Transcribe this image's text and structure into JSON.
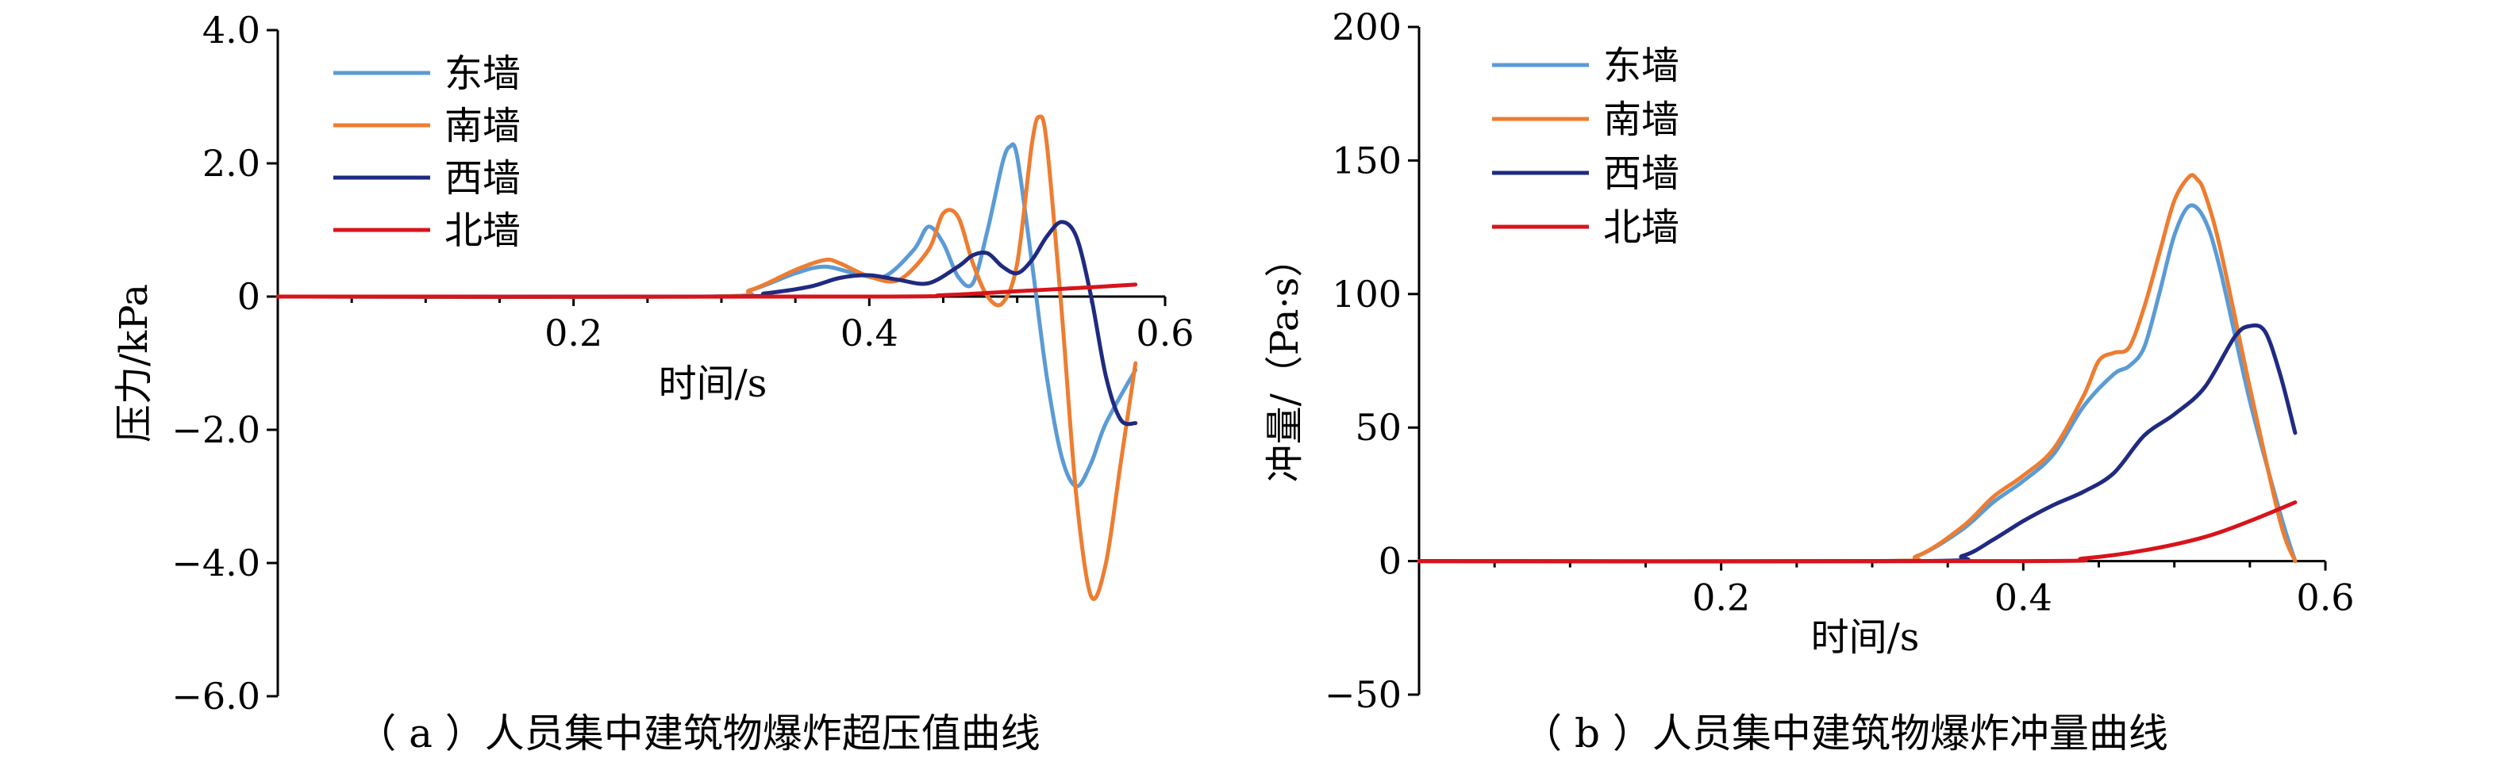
{
  "chart_data": [
    {
      "type": "line",
      "caption": "（ a ）人员集中建筑物爆炸超压值曲线",
      "xlabel": "时间/s",
      "ylabel": "压力/kPa",
      "xlim": [
        0,
        0.6
      ],
      "ylim": [
        -6.0,
        4.0
      ],
      "xticks": [
        0.2,
        0.4,
        0.6
      ],
      "xtick_labels": [
        "0.2",
        "0.4",
        "0.6"
      ],
      "yticks": [
        4.0,
        2.0,
        0,
        -2.0,
        -4.0,
        -6.0
      ],
      "ytick_labels": [
        "4.0",
        "2.0",
        "0",
        "−2.0",
        "−4.0",
        "−6.0"
      ],
      "legend_position": "top-left",
      "series": [
        {
          "name": "东墙",
          "color": "#5b9bd5",
          "x": [
            0,
            0.29,
            0.32,
            0.35,
            0.37,
            0.39,
            0.41,
            0.43,
            0.44,
            0.45,
            0.46,
            0.47,
            0.48,
            0.49,
            0.495,
            0.5,
            0.51,
            0.52,
            0.53,
            0.54,
            0.55,
            0.56,
            0.58
          ],
          "y": [
            0,
            0,
            0.1,
            0.35,
            0.45,
            0.35,
            0.3,
            0.7,
            1.05,
            0.8,
            0.3,
            0.2,
            1.0,
            2.0,
            2.25,
            2.1,
            0.5,
            -1.2,
            -2.4,
            -2.85,
            -2.5,
            -1.9,
            -1.1
          ]
        },
        {
          "name": "南墙",
          "color": "#ed7d31",
          "x": [
            0,
            0.29,
            0.32,
            0.35,
            0.37,
            0.38,
            0.4,
            0.42,
            0.44,
            0.45,
            0.46,
            0.47,
            0.48,
            0.49,
            0.5,
            0.51,
            0.515,
            0.52,
            0.53,
            0.54,
            0.55,
            0.56,
            0.57,
            0.58
          ],
          "y": [
            0,
            0,
            0.1,
            0.4,
            0.55,
            0.5,
            0.3,
            0.25,
            0.7,
            1.25,
            1.2,
            0.5,
            0.0,
            -0.1,
            0.5,
            2.3,
            2.7,
            2.3,
            -0.2,
            -3.0,
            -4.5,
            -4.0,
            -2.5,
            -1.0
          ]
        },
        {
          "name": "西墙",
          "color": "#1f2a80",
          "x": [
            0,
            0.3,
            0.33,
            0.36,
            0.38,
            0.4,
            0.42,
            0.44,
            0.46,
            0.47,
            0.48,
            0.49,
            0.5,
            0.51,
            0.52,
            0.53,
            0.54,
            0.55,
            0.56,
            0.57,
            0.58
          ],
          "y": [
            0,
            0,
            0.05,
            0.15,
            0.28,
            0.32,
            0.25,
            0.2,
            0.45,
            0.62,
            0.65,
            0.45,
            0.35,
            0.55,
            0.9,
            1.12,
            0.9,
            0.0,
            -1.2,
            -1.85,
            -1.9
          ]
        },
        {
          "name": "北墙",
          "color": "#d7141b",
          "x": [
            0,
            0.4,
            0.45,
            0.5,
            0.55,
            0.58
          ],
          "y": [
            0,
            0,
            0.02,
            0.08,
            0.14,
            0.18
          ]
        }
      ]
    },
    {
      "type": "line",
      "caption": "（ b ）人员集中建筑物爆炸冲量曲线",
      "xlabel": "时间/s",
      "ylabel": "冲量/（Pa·s）",
      "xlim": [
        0,
        0.6
      ],
      "ylim": [
        -50,
        200
      ],
      "xticks": [
        0.2,
        0.4,
        0.6
      ],
      "xtick_labels": [
        "0.2",
        "0.4",
        "0.6"
      ],
      "yticks": [
        200,
        150,
        100,
        50,
        0,
        -50
      ],
      "ytick_labels": [
        "200",
        "150",
        "100",
        "50",
        "0",
        "−50"
      ],
      "legend_position": "top-left",
      "series": [
        {
          "name": "东墙",
          "color": "#5b9bd5",
          "x": [
            0,
            0.3,
            0.33,
            0.36,
            0.38,
            0.4,
            0.42,
            0.44,
            0.46,
            0.47,
            0.48,
            0.49,
            0.5,
            0.51,
            0.52,
            0.53,
            0.55,
            0.57,
            0.58
          ],
          "y": [
            0,
            0,
            2,
            12,
            22,
            30,
            40,
            58,
            70,
            73,
            80,
            100,
            122,
            133,
            128,
            110,
            60,
            18,
            0
          ]
        },
        {
          "name": "南墙",
          "color": "#ed7d31",
          "x": [
            0,
            0.3,
            0.33,
            0.36,
            0.38,
            0.4,
            0.42,
            0.44,
            0.45,
            0.46,
            0.47,
            0.48,
            0.49,
            0.5,
            0.51,
            0.515,
            0.52,
            0.53,
            0.55,
            0.57,
            0.58
          ],
          "y": [
            0,
            0,
            2,
            13,
            24,
            32,
            42,
            62,
            75,
            78,
            80,
            95,
            115,
            135,
            144,
            143,
            138,
            118,
            65,
            15,
            0
          ]
        },
        {
          "name": "西墙",
          "color": "#1f2a80",
          "x": [
            0,
            0.33,
            0.36,
            0.38,
            0.4,
            0.42,
            0.44,
            0.46,
            0.48,
            0.5,
            0.52,
            0.54,
            0.55,
            0.56,
            0.57,
            0.58
          ],
          "y": [
            0,
            0,
            2,
            8,
            15,
            21,
            26,
            33,
            47,
            55,
            65,
            84,
            88,
            86,
            70,
            48
          ]
        },
        {
          "name": "北墙",
          "color": "#d7141b",
          "x": [
            0,
            0.4,
            0.44,
            0.48,
            0.52,
            0.55,
            0.58
          ],
          "y": [
            0,
            0,
            1,
            4,
            9,
            15,
            22
          ]
        }
      ]
    }
  ]
}
